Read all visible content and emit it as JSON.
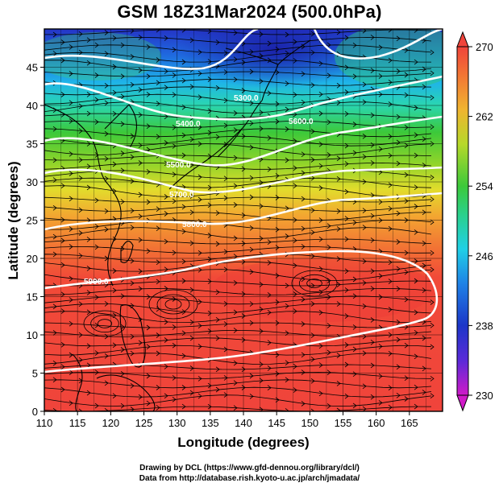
{
  "title": "GSM 18Z31Mar2024 (500.0hPa)",
  "x_axis": {
    "label": "Longitude (degrees)",
    "range": [
      110,
      170
    ],
    "ticks": [
      "110",
      "115",
      "120",
      "125",
      "130",
      "135",
      "140",
      "145",
      "150",
      "155",
      "160",
      "165"
    ]
  },
  "y_axis": {
    "label": "Latitude  (degrees)",
    "range": [
      0,
      50
    ],
    "ticks": [
      "0",
      "5",
      "10",
      "15",
      "20",
      "25",
      "30",
      "35",
      "40",
      "45"
    ]
  },
  "colorbar": {
    "range": [
      230,
      270
    ],
    "ticks": [
      "230",
      "238",
      "246",
      "254",
      "262",
      "270"
    ]
  },
  "contours": [
    {
      "label": "5300.0"
    },
    {
      "label": "5400.0"
    },
    {
      "label": "5500.0"
    },
    {
      "label": "5600.0"
    },
    {
      "label": "5700.0"
    },
    {
      "label": "5800.0"
    },
    {
      "label": "5900.0"
    }
  ],
  "credits": [
    "Drawing by DCL (https://www.gfd-dennou.org/library/dcl/)",
    "Data from http://database.rish.kyoto-u.ac.jp/arch/jmadata/"
  ],
  "colors": {
    "cold": "#1f2fbf",
    "mid": "#29c12e",
    "warm": "#f2403a",
    "contour": "#ffffff"
  }
}
